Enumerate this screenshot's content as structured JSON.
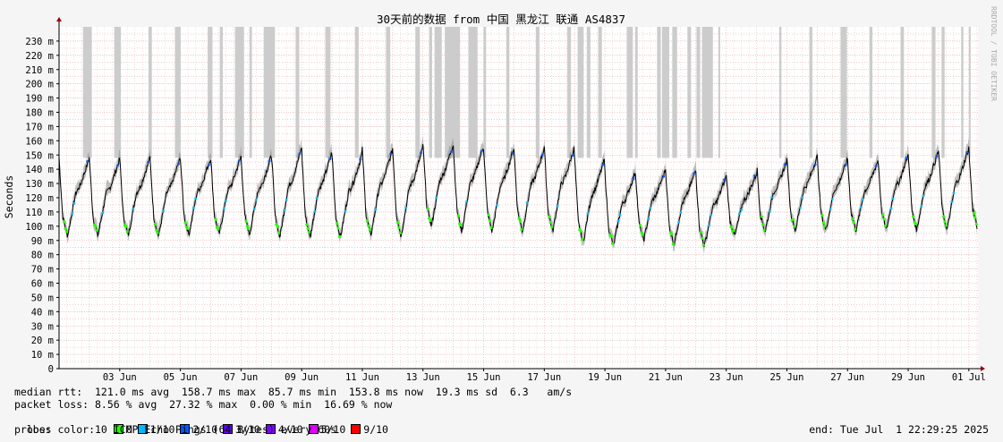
{
  "chart_data": {
    "type": "line",
    "title": "30天前的数据 from 中国 黑龙江 联通 AS4837",
    "ylabel": "Seconds",
    "side_label": "RRDTOOL / TOBI OETIKER",
    "ylim_ms": [
      0,
      240
    ],
    "y_ticks": [
      0,
      10,
      20,
      30,
      40,
      50,
      60,
      70,
      80,
      90,
      100,
      110,
      120,
      130,
      140,
      150,
      160,
      170,
      180,
      190,
      200,
      210,
      220,
      230
    ],
    "y_tick_labels": [
      "0",
      "10 m",
      "20 m",
      "30 m",
      "40 m",
      "50 m",
      "60 m",
      "70 m",
      "80 m",
      "90 m",
      "100 m",
      "110 m",
      "120 m",
      "130 m",
      "140 m",
      "150 m",
      "160 m",
      "170 m",
      "180 m",
      "190 m",
      "200 m",
      "210 m",
      "220 m",
      "230 m"
    ],
    "x_range_days": [
      1,
      31
    ],
    "x_ticks": [
      {
        "day": 3,
        "label": "03 Jun"
      },
      {
        "day": 5,
        "label": "05 Jun"
      },
      {
        "day": 7,
        "label": "07 Jun"
      },
      {
        "day": 9,
        "label": "09 Jun"
      },
      {
        "day": 11,
        "label": "11 Jun"
      },
      {
        "day": 13,
        "label": "13 Jun"
      },
      {
        "day": 15,
        "label": "15 Jun"
      },
      {
        "day": 17,
        "label": "17 Jun"
      },
      {
        "day": 19,
        "label": "19 Jun"
      },
      {
        "day": 21,
        "label": "21 Jun"
      },
      {
        "day": 23,
        "label": "23 Jun"
      },
      {
        "day": 25,
        "label": "25 Jun"
      },
      {
        "day": 27,
        "label": "27 Jun"
      },
      {
        "day": 29,
        "label": "29 Jun"
      },
      {
        "day": 31,
        "label": "01 Jul"
      }
    ],
    "grid": true,
    "daily_cycle": [
      {
        "day": 1,
        "min": 93,
        "max": 148
      },
      {
        "day": 2,
        "min": 93,
        "max": 147
      },
      {
        "day": 3,
        "min": 93,
        "max": 148
      },
      {
        "day": 4,
        "min": 93,
        "max": 148
      },
      {
        "day": 5,
        "min": 94,
        "max": 148
      },
      {
        "day": 6,
        "min": 94,
        "max": 149
      },
      {
        "day": 7,
        "min": 94,
        "max": 149
      },
      {
        "day": 8,
        "min": 92,
        "max": 155
      },
      {
        "day": 9,
        "min": 92,
        "max": 152
      },
      {
        "day": 10,
        "min": 92,
        "max": 151
      },
      {
        "day": 11,
        "min": 93,
        "max": 154
      },
      {
        "day": 12,
        "min": 93,
        "max": 155
      },
      {
        "day": 13,
        "min": 100,
        "max": 158
      },
      {
        "day": 14,
        "min": 96,
        "max": 157
      },
      {
        "day": 15,
        "min": 96,
        "max": 155
      },
      {
        "day": 16,
        "min": 96,
        "max": 155
      },
      {
        "day": 17,
        "min": 96,
        "max": 156
      },
      {
        "day": 18,
        "min": 88,
        "max": 148
      },
      {
        "day": 19,
        "min": 86,
        "max": 138
      },
      {
        "day": 20,
        "min": 90,
        "max": 140
      },
      {
        "day": 21,
        "min": 87,
        "max": 140
      },
      {
        "day": 22,
        "min": 86,
        "max": 135
      },
      {
        "day": 23,
        "min": 93,
        "max": 137
      },
      {
        "day": 24,
        "min": 96,
        "max": 146
      },
      {
        "day": 25,
        "min": 97,
        "max": 149
      },
      {
        "day": 26,
        "min": 97,
        "max": 147
      },
      {
        "day": 27,
        "min": 97,
        "max": 146
      },
      {
        "day": 28,
        "min": 97,
        "max": 150
      },
      {
        "day": 29,
        "min": 97,
        "max": 153
      },
      {
        "day": 30,
        "min": 97,
        "max": 155
      },
      {
        "day": 31,
        "min": 99,
        "max": 154
      }
    ],
    "loss_bands_days": [
      [
        1.79,
        2.08
      ],
      [
        2.82,
        3.04
      ],
      [
        3.95,
        4.06
      ],
      [
        4.82,
        5.01
      ],
      [
        5.9,
        6.06
      ],
      [
        6.3,
        6.4
      ],
      [
        6.8,
        7.1
      ],
      [
        7.28,
        7.36
      ],
      [
        7.75,
        8.12
      ],
      [
        8.8,
        8.92
      ],
      [
        9.78,
        9.95
      ],
      [
        10.76,
        10.88
      ],
      [
        11.78,
        11.92
      ],
      [
        12.75,
        12.9
      ],
      [
        13.2,
        13.3
      ],
      [
        13.38,
        13.62
      ],
      [
        13.72,
        14.22
      ],
      [
        14.5,
        14.8
      ],
      [
        15.0,
        15.08
      ],
      [
        15.75,
        15.85
      ],
      [
        16.72,
        16.84
      ],
      [
        17.76,
        17.88
      ],
      [
        18.1,
        18.3
      ],
      [
        18.4,
        18.52
      ],
      [
        18.78,
        18.9
      ],
      [
        19.72,
        19.92
      ],
      [
        20.0,
        20.08
      ],
      [
        20.72,
        20.84
      ],
      [
        20.88,
        21.12
      ],
      [
        21.22,
        21.38
      ],
      [
        21.72,
        21.84
      ],
      [
        22.02,
        22.14
      ],
      [
        22.2,
        22.56
      ],
      [
        22.74,
        22.8
      ],
      [
        24.75,
        24.82
      ],
      [
        25.74,
        25.84
      ],
      [
        26.77,
        26.98
      ],
      [
        27.72,
        27.82
      ],
      [
        28.75,
        28.86
      ],
      [
        29.78,
        29.9
      ],
      [
        30.1,
        30.2
      ],
      [
        30.75,
        30.82
      ],
      [
        31.0,
        31.06
      ]
    ],
    "loss_band_color": "#cccccc",
    "line_color": "#000000",
    "band_color": "#888888"
  },
  "stats": {
    "median_rtt": "median rtt:  121.0 ms avg  158.7 ms max  85.7 ms min  153.8 ms now  19.3 ms sd  6.3   am/s",
    "packet_loss": "packet loss: 8.56 % avg  27.32 % max  0.00 % min  16.69 % now",
    "loss_color_label": "loss color:",
    "probe": "probe:       10 ICMP Echo Pings (64 Bytes) every 60s",
    "end": "end: Tue Jul  1 22:29:25 2025"
  },
  "loss_colors": [
    {
      "label": "0",
      "color": "#26ff00"
    },
    {
      "label": "1/10",
      "color": "#00b8ff"
    },
    {
      "label": "2/10",
      "color": "#0059ff"
    },
    {
      "label": "3/10",
      "color": "#5e00ff"
    },
    {
      "label": "4/10",
      "color": "#7e00ff"
    },
    {
      "label": "5/10",
      "color": "#dd00ff"
    },
    {
      "label": "9/10",
      "color": "#ff0000"
    }
  ]
}
